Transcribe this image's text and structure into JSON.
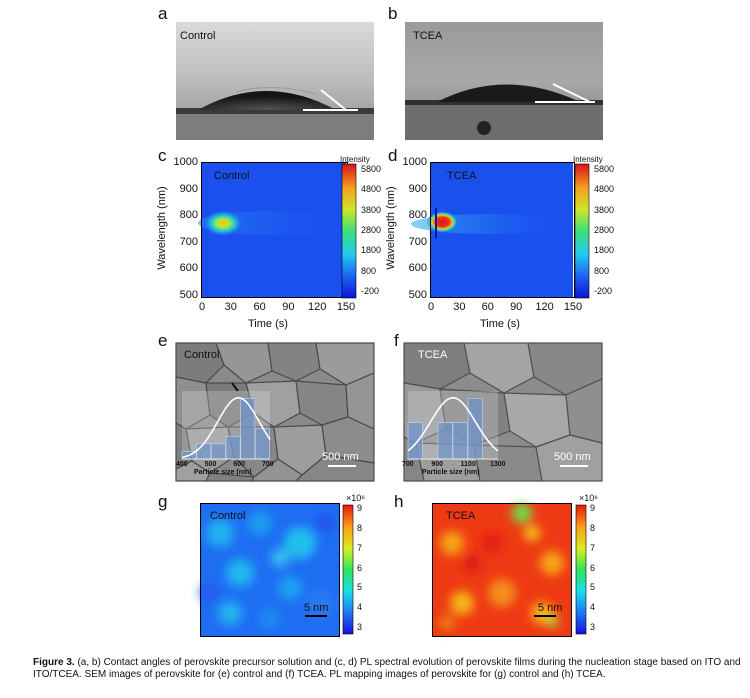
{
  "panels": {
    "a": {
      "letter": "a",
      "label": "Control"
    },
    "b": {
      "letter": "b",
      "label": "TCEA"
    },
    "c": {
      "letter": "c",
      "label": "Control"
    },
    "d": {
      "letter": "d",
      "label": "TCEA"
    },
    "e": {
      "letter": "e",
      "label": "Control",
      "scale": "500 nm",
      "hist_xlabel": "Particle size (nm)",
      "hist_ticks": [
        "400",
        "500",
        "600",
        "700"
      ]
    },
    "f": {
      "letter": "f",
      "label": "TCEA",
      "scale": "500 nm",
      "hist_xlabel": "Particle size (nm)",
      "hist_ticks": [
        "700",
        "900",
        "1100",
        "1300"
      ]
    },
    "g": {
      "letter": "g",
      "label": "Control",
      "scale": "5 nm",
      "cb_exp": "×10⁶"
    },
    "h": {
      "letter": "h",
      "label": "TCEA",
      "scale": "5 nm",
      "cb_exp": "×10⁶"
    }
  },
  "chart_data": [
    {
      "type": "heatmap",
      "panel": "c",
      "annotation": "Control",
      "xlabel": "Time (s)",
      "ylabel": "Wavelength (nm)",
      "x_ticks": [
        "0",
        "30",
        "60",
        "90",
        "120",
        "150"
      ],
      "y_ticks": [
        "1000",
        "900",
        "800",
        "700",
        "600",
        "500"
      ],
      "xlim": [
        0,
        150
      ],
      "ylim": [
        500,
        1000
      ],
      "colorbar_title": "Intensity",
      "colorbar_ticks": [
        "5800",
        "4800",
        "3800",
        "2800",
        "1800",
        "800",
        "-200"
      ],
      "clim": [
        -200,
        5800
      ],
      "peak": {
        "time_s": 22,
        "wavelength_nm": 775,
        "intensity": 3000
      }
    },
    {
      "type": "heatmap",
      "panel": "d",
      "annotation": "TCEA",
      "xlabel": "Time (s)",
      "ylabel": "Wavelength (nm)",
      "x_ticks": [
        "0",
        "30",
        "60",
        "90",
        "120",
        "150"
      ],
      "y_ticks": [
        "1000",
        "900",
        "800",
        "700",
        "600",
        "500"
      ],
      "xlim": [
        0,
        150
      ],
      "ylim": [
        500,
        1000
      ],
      "colorbar_title": "Intensity",
      "colorbar_ticks": [
        "5800",
        "4800",
        "3800",
        "2800",
        "1800",
        "800",
        "-200"
      ],
      "clim": [
        -200,
        5800
      ],
      "peak": {
        "time_s": 12,
        "wavelength_nm": 780,
        "intensity": 5800
      }
    },
    {
      "type": "bar",
      "panel": "e",
      "xlabel": "Particle size (nm)",
      "x_ticks": [
        "400",
        "500",
        "600",
        "700"
      ],
      "xlim": [
        400,
        700
      ],
      "bin_edges": [
        400,
        450,
        500,
        550,
        600,
        650,
        700
      ],
      "values": [
        1,
        2,
        2,
        3,
        8,
        4
      ]
    },
    {
      "type": "bar",
      "panel": "f",
      "xlabel": "Particle size (nm)",
      "x_ticks": [
        "700",
        "900",
        "1100",
        "1300"
      ],
      "xlim": [
        700,
        1300
      ],
      "bin_edges": [
        700,
        800,
        900,
        1000,
        1100,
        1200,
        1300
      ],
      "values": [
        3,
        0,
        3,
        3,
        5,
        0
      ]
    },
    {
      "type": "heatmap",
      "panel": "g",
      "annotation": "Control",
      "colorbar_ticks": [
        "9",
        "8",
        "7",
        "6",
        "5",
        "4",
        "3"
      ],
      "colorbar_exponent": "×10⁶",
      "clim": [
        3,
        9
      ]
    },
    {
      "type": "heatmap",
      "panel": "h",
      "annotation": "TCEA",
      "colorbar_ticks": [
        "9",
        "8",
        "7",
        "6",
        "5",
        "4",
        "3"
      ],
      "colorbar_exponent": "×10⁶",
      "clim": [
        3,
        9
      ]
    }
  ],
  "caption": {
    "bold": "Figure 3.",
    "text": " (a, b) Contact angles of perovskite precursor solution and (c, d) PL spectral evolution of perovskite films during the nucleation stage based on ITO and ITO/TCEA. SEM images of perovskite for (e) control and (f) TCEA. PL mapping images of perovskite for (g) control and (h) TCEA."
  }
}
